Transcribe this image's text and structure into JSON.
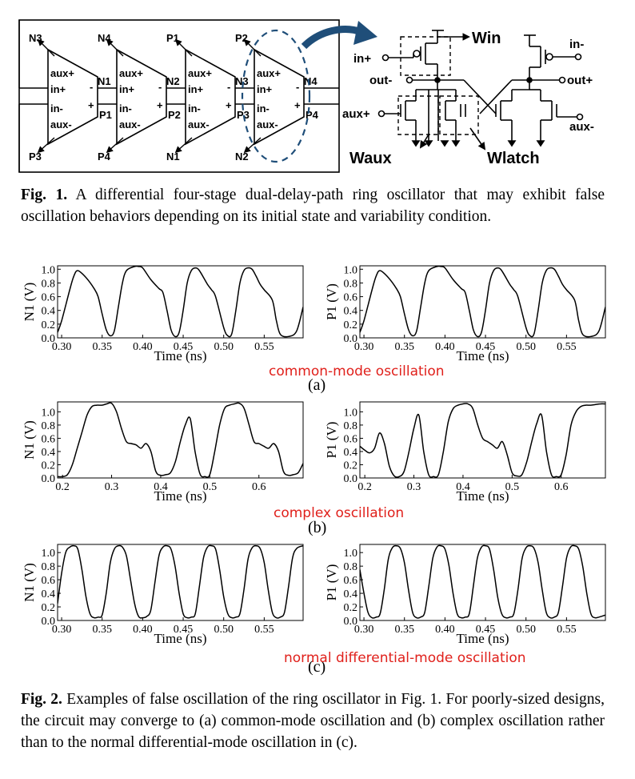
{
  "figure1": {
    "caption_label": "Fig. 1.",
    "caption_text": " A differential four-stage dual-delay-path ring oscillator that may exhibit false oscillation behaviors depending on its initial state and variability condition.",
    "stage_pins": [
      "aux+",
      "in+",
      "in-",
      "aux-"
    ],
    "stage_signs": [
      "-",
      "+"
    ],
    "top_nodes": [
      "N3",
      "N4",
      "P1",
      "P2"
    ],
    "bottom_nodes": [
      "P3",
      "P4",
      "N1",
      "N2"
    ],
    "between_nodes": [
      {
        "n": "N1",
        "p": "P1"
      },
      {
        "n": "N2",
        "p": "P2"
      },
      {
        "n": "N3",
        "p": "P3"
      },
      {
        "n": "N4",
        "p": "P4"
      }
    ],
    "schematic": {
      "win": "Win",
      "waux": "Waux",
      "wlatch": "Wlatch",
      "in_plus": "in+",
      "in_minus": "in-",
      "out_minus": "out-",
      "out_plus": "out+",
      "aux_plus": "aux+",
      "aux_minus": "aux-"
    }
  },
  "figure2": {
    "caption_label": "Fig. 2.",
    "caption_text": " Examples of false oscillation of the ring oscillator in Fig. 1. For poorly-sized designs, the circuit may converge to (a) common-mode oscillation and (b) complex oscillation rather than to the normal differential-mode oscillation in (c).",
    "rows": [
      {
        "tag": "(a)",
        "annotation": "common-mode oscillation"
      },
      {
        "tag": "(b)",
        "annotation": "complex oscillation"
      },
      {
        "tag": "(c)",
        "annotation": "normal differential-mode oscillation"
      }
    ]
  },
  "chart_data": [
    {
      "id": "a-N1",
      "type": "line",
      "title": "",
      "xlabel": "Time (ns)",
      "ylabel": "N1 (V)",
      "xlim": [
        0.295,
        0.598
      ],
      "ylim": [
        0.0,
        1.05
      ],
      "xticks": [
        "0.30",
        "0.35",
        "0.40",
        "0.45",
        "0.50",
        "0.55"
      ],
      "xtick_values": [
        0.3,
        0.35,
        0.4,
        0.45,
        0.5,
        0.55
      ],
      "yticks": [
        "0.0",
        "0.2",
        "0.4",
        "0.6",
        "0.8",
        "1.0"
      ],
      "ytick_values": [
        0.0,
        0.2,
        0.4,
        0.6,
        0.8,
        1.0
      ],
      "x": [
        0.295,
        0.3,
        0.31,
        0.315,
        0.32,
        0.33,
        0.34,
        0.345,
        0.35,
        0.355,
        0.36,
        0.365,
        0.37,
        0.375,
        0.38,
        0.39,
        0.395,
        0.4,
        0.41,
        0.42,
        0.425,
        0.43,
        0.435,
        0.44,
        0.445,
        0.45,
        0.455,
        0.46,
        0.465,
        0.47,
        0.48,
        0.485,
        0.49,
        0.5,
        0.505,
        0.51,
        0.515,
        0.52,
        0.525,
        0.53,
        0.535,
        0.54,
        0.545,
        0.55,
        0.56,
        0.565,
        0.57,
        0.58,
        0.59,
        0.598
      ],
      "y": [
        0.08,
        0.25,
        0.7,
        0.9,
        0.98,
        0.88,
        0.72,
        0.6,
        0.35,
        0.12,
        0.03,
        0.1,
        0.45,
        0.8,
        0.98,
        1.04,
        1.04,
        1.02,
        0.85,
        0.72,
        0.66,
        0.4,
        0.12,
        0.02,
        0.08,
        0.4,
        0.8,
        0.98,
        1.02,
        0.98,
        0.78,
        0.7,
        0.6,
        0.15,
        0.03,
        0.06,
        0.4,
        0.8,
        0.98,
        1.02,
        1.0,
        0.9,
        0.78,
        0.7,
        0.55,
        0.25,
        0.05,
        0.02,
        0.1,
        0.45
      ]
    },
    {
      "id": "a-P1",
      "type": "line",
      "title": "",
      "xlabel": "Time (ns)",
      "ylabel": "P1 (V)",
      "xlim": [
        0.295,
        0.598
      ],
      "ylim": [
        0.0,
        1.05
      ],
      "xticks": [
        "0.30",
        "0.35",
        "0.40",
        "0.45",
        "0.50",
        "0.55"
      ],
      "xtick_values": [
        0.3,
        0.35,
        0.4,
        0.45,
        0.5,
        0.55
      ],
      "yticks": [
        "0.0",
        "0.2",
        "0.4",
        "0.6",
        "0.8",
        "1.0"
      ],
      "ytick_values": [
        0.0,
        0.2,
        0.4,
        0.6,
        0.8,
        1.0
      ],
      "x": [
        0.295,
        0.3,
        0.31,
        0.315,
        0.32,
        0.33,
        0.34,
        0.345,
        0.35,
        0.355,
        0.36,
        0.365,
        0.37,
        0.375,
        0.38,
        0.39,
        0.395,
        0.4,
        0.41,
        0.42,
        0.425,
        0.43,
        0.435,
        0.44,
        0.445,
        0.45,
        0.455,
        0.46,
        0.465,
        0.47,
        0.48,
        0.485,
        0.49,
        0.5,
        0.505,
        0.51,
        0.515,
        0.52,
        0.525,
        0.53,
        0.535,
        0.54,
        0.545,
        0.55,
        0.56,
        0.565,
        0.57,
        0.58,
        0.59,
        0.598
      ],
      "y": [
        0.08,
        0.25,
        0.7,
        0.9,
        0.98,
        0.88,
        0.72,
        0.6,
        0.35,
        0.12,
        0.03,
        0.1,
        0.45,
        0.8,
        0.98,
        1.04,
        1.04,
        1.02,
        0.85,
        0.72,
        0.66,
        0.4,
        0.12,
        0.02,
        0.08,
        0.4,
        0.8,
        0.98,
        1.02,
        0.98,
        0.78,
        0.7,
        0.6,
        0.15,
        0.03,
        0.06,
        0.4,
        0.8,
        0.98,
        1.02,
        1.0,
        0.9,
        0.78,
        0.7,
        0.55,
        0.25,
        0.05,
        0.02,
        0.1,
        0.45
      ]
    },
    {
      "id": "b-N1",
      "type": "line",
      "title": "",
      "xlabel": "Time (ns)",
      "ylabel": "N1 (V)",
      "xlim": [
        0.19,
        0.69
      ],
      "ylim": [
        0.0,
        1.15
      ],
      "xticks": [
        "0.2",
        "0.3",
        "0.4",
        "0.5",
        "0.6"
      ],
      "xtick_values": [
        0.2,
        0.3,
        0.4,
        0.5,
        0.6
      ],
      "yticks": [
        "0.0",
        "0.2",
        "0.4",
        "0.6",
        "0.8",
        "1.0"
      ],
      "ytick_values": [
        0.0,
        0.2,
        0.4,
        0.6,
        0.8,
        1.0
      ],
      "x": [
        0.19,
        0.2,
        0.21,
        0.22,
        0.23,
        0.24,
        0.25,
        0.26,
        0.27,
        0.28,
        0.29,
        0.3,
        0.31,
        0.32,
        0.33,
        0.34,
        0.35,
        0.36,
        0.37,
        0.38,
        0.39,
        0.4,
        0.41,
        0.42,
        0.43,
        0.44,
        0.45,
        0.46,
        0.47,
        0.48,
        0.49,
        0.5,
        0.51,
        0.52,
        0.53,
        0.54,
        0.55,
        0.56,
        0.57,
        0.58,
        0.59,
        0.6,
        0.61,
        0.62,
        0.63,
        0.64,
        0.65,
        0.66,
        0.67,
        0.68,
        0.69
      ],
      "y": [
        0.02,
        0.02,
        0.05,
        0.2,
        0.45,
        0.7,
        0.95,
        1.08,
        1.1,
        1.1,
        1.12,
        1.13,
        1.0,
        0.75,
        0.55,
        0.52,
        0.5,
        0.45,
        0.52,
        0.4,
        0.1,
        0.04,
        0.05,
        0.08,
        0.25,
        0.55,
        0.8,
        0.9,
        0.4,
        0.06,
        0.02,
        0.05,
        0.4,
        0.8,
        1.05,
        1.1,
        1.12,
        1.13,
        1.05,
        0.8,
        0.55,
        0.52,
        0.48,
        0.45,
        0.52,
        0.4,
        0.1,
        0.04,
        0.05,
        0.08,
        0.22
      ]
    },
    {
      "id": "b-P1",
      "type": "line",
      "title": "",
      "xlabel": "Time (ns)",
      "ylabel": "P1 (V)",
      "xlim": [
        0.19,
        0.69
      ],
      "ylim": [
        0.0,
        1.15
      ],
      "xticks": [
        "0.2",
        "0.3",
        "0.4",
        "0.5",
        "0.6"
      ],
      "xtick_values": [
        0.2,
        0.3,
        0.4,
        0.5,
        0.6
      ],
      "yticks": [
        "0.0",
        "0.2",
        "0.4",
        "0.6",
        "0.8",
        "1.0"
      ],
      "ytick_values": [
        0.0,
        0.2,
        0.4,
        0.6,
        0.8,
        1.0
      ],
      "x": [
        0.19,
        0.2,
        0.21,
        0.22,
        0.23,
        0.24,
        0.25,
        0.26,
        0.27,
        0.28,
        0.29,
        0.3,
        0.31,
        0.32,
        0.33,
        0.34,
        0.35,
        0.36,
        0.37,
        0.38,
        0.39,
        0.4,
        0.41,
        0.42,
        0.43,
        0.44,
        0.45,
        0.46,
        0.47,
        0.48,
        0.49,
        0.5,
        0.51,
        0.52,
        0.53,
        0.54,
        0.55,
        0.56,
        0.57,
        0.58,
        0.59,
        0.6,
        0.61,
        0.62,
        0.63,
        0.64,
        0.65,
        0.66,
        0.67,
        0.68,
        0.69
      ],
      "y": [
        0.48,
        0.42,
        0.38,
        0.45,
        0.68,
        0.52,
        0.18,
        0.03,
        0.02,
        0.1,
        0.4,
        0.75,
        0.95,
        0.4,
        0.05,
        0.02,
        0.05,
        0.4,
        0.85,
        1.05,
        1.1,
        1.12,
        1.12,
        1.05,
        0.8,
        0.6,
        0.55,
        0.5,
        0.45,
        0.55,
        0.35,
        0.08,
        0.03,
        0.05,
        0.25,
        0.55,
        0.82,
        0.95,
        0.4,
        0.05,
        0.02,
        0.05,
        0.35,
        0.8,
        1.0,
        1.08,
        1.1,
        1.1,
        1.11,
        1.12,
        1.12
      ]
    },
    {
      "id": "c-N1",
      "type": "line",
      "title": "",
      "xlabel": "Time (ns)",
      "ylabel": "N1 (V)",
      "xlim": [
        0.295,
        0.598
      ],
      "ylim": [
        0.0,
        1.12
      ],
      "xticks": [
        "0.30",
        "0.35",
        "0.40",
        "0.45",
        "0.50",
        "0.55"
      ],
      "xtick_values": [
        0.3,
        0.35,
        0.4,
        0.45,
        0.5,
        0.55
      ],
      "yticks": [
        "0.0",
        "0.2",
        "0.4",
        "0.6",
        "0.8",
        "1.0"
      ],
      "ytick_values": [
        0.0,
        0.2,
        0.4,
        0.6,
        0.8,
        1.0
      ],
      "x": [
        0.295,
        0.3,
        0.305,
        0.31,
        0.315,
        0.32,
        0.325,
        0.33,
        0.335,
        0.34,
        0.345,
        0.35,
        0.355,
        0.36,
        0.365,
        0.37,
        0.375,
        0.38,
        0.385,
        0.39,
        0.395,
        0.4,
        0.405,
        0.41,
        0.415,
        0.42,
        0.425,
        0.43,
        0.435,
        0.44,
        0.445,
        0.45,
        0.455,
        0.46,
        0.465,
        0.47,
        0.475,
        0.48,
        0.485,
        0.49,
        0.495,
        0.5,
        0.505,
        0.51,
        0.515,
        0.52,
        0.525,
        0.53,
        0.535,
        0.54,
        0.545,
        0.55,
        0.555,
        0.56,
        0.565,
        0.57,
        0.575,
        0.58,
        0.585,
        0.59,
        0.598
      ],
      "y": [
        0.25,
        0.7,
        1.0,
        1.08,
        1.1,
        1.05,
        0.75,
        0.35,
        0.1,
        0.04,
        0.05,
        0.08,
        0.4,
        0.85,
        1.05,
        1.1,
        1.08,
        0.95,
        0.6,
        0.25,
        0.06,
        0.04,
        0.06,
        0.15,
        0.55,
        0.95,
        1.08,
        1.1,
        1.05,
        0.8,
        0.4,
        0.1,
        0.04,
        0.05,
        0.1,
        0.5,
        0.92,
        1.08,
        1.1,
        1.05,
        0.75,
        0.35,
        0.1,
        0.04,
        0.05,
        0.1,
        0.45,
        0.9,
        1.07,
        1.1,
        1.06,
        0.85,
        0.45,
        0.12,
        0.04,
        0.05,
        0.12,
        0.5,
        0.92,
        1.06,
        1.1
      ]
    },
    {
      "id": "c-P1",
      "type": "line",
      "title": "",
      "xlabel": "Time (ns)",
      "ylabel": "P1 (V)",
      "xlim": [
        0.295,
        0.598
      ],
      "ylim": [
        0.0,
        1.12
      ],
      "xticks": [
        "0.30",
        "0.35",
        "0.40",
        "0.45",
        "0.50",
        "0.55"
      ],
      "xtick_values": [
        0.3,
        0.35,
        0.4,
        0.45,
        0.5,
        0.55
      ],
      "yticks": [
        "0.0",
        "0.2",
        "0.4",
        "0.6",
        "0.8",
        "1.0"
      ],
      "ytick_values": [
        0.0,
        0.2,
        0.4,
        0.6,
        0.8,
        1.0
      ],
      "x": [
        0.295,
        0.3,
        0.305,
        0.31,
        0.315,
        0.32,
        0.325,
        0.33,
        0.335,
        0.34,
        0.345,
        0.35,
        0.355,
        0.36,
        0.365,
        0.37,
        0.375,
        0.38,
        0.385,
        0.39,
        0.395,
        0.4,
        0.405,
        0.41,
        0.415,
        0.42,
        0.425,
        0.43,
        0.435,
        0.44,
        0.445,
        0.45,
        0.455,
        0.46,
        0.465,
        0.47,
        0.475,
        0.48,
        0.485,
        0.49,
        0.495,
        0.5,
        0.505,
        0.51,
        0.515,
        0.52,
        0.525,
        0.53,
        0.535,
        0.54,
        0.545,
        0.55,
        0.555,
        0.56,
        0.565,
        0.57,
        0.575,
        0.58,
        0.585,
        0.59,
        0.598
      ],
      "y": [
        0.75,
        0.4,
        0.12,
        0.04,
        0.05,
        0.1,
        0.45,
        0.9,
        1.07,
        1.1,
        1.06,
        0.85,
        0.45,
        0.12,
        0.04,
        0.05,
        0.12,
        0.5,
        0.92,
        1.08,
        1.1,
        1.05,
        0.8,
        0.4,
        0.1,
        0.04,
        0.05,
        0.1,
        0.5,
        0.92,
        1.08,
        1.1,
        1.05,
        0.75,
        0.35,
        0.1,
        0.04,
        0.05,
        0.1,
        0.45,
        0.9,
        1.07,
        1.1,
        1.06,
        0.85,
        0.45,
        0.12,
        0.04,
        0.05,
        0.12,
        0.5,
        0.92,
        1.08,
        1.1,
        1.05,
        0.8,
        0.4,
        0.1,
        0.04,
        0.05,
        0.08
      ]
    }
  ]
}
